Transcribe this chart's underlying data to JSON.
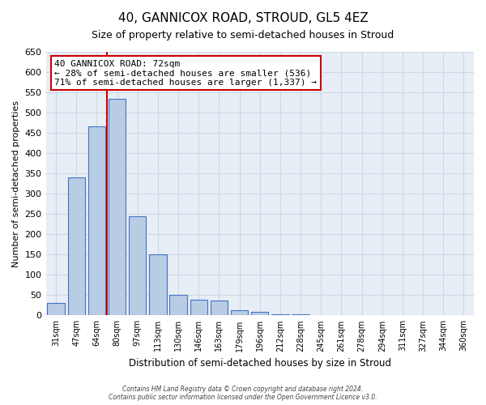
{
  "title": "40, GANNICOX ROAD, STROUD, GL5 4EZ",
  "subtitle": "Size of property relative to semi-detached houses in Stroud",
  "xlabel": "Distribution of semi-detached houses by size in Stroud",
  "ylabel": "Number of semi-detached properties",
  "bar_labels": [
    "31sqm",
    "47sqm",
    "64sqm",
    "80sqm",
    "97sqm",
    "113sqm",
    "130sqm",
    "146sqm",
    "163sqm",
    "179sqm",
    "196sqm",
    "212sqm",
    "228sqm",
    "245sqm",
    "261sqm",
    "278sqm",
    "294sqm",
    "311sqm",
    "327sqm",
    "344sqm",
    "360sqm"
  ],
  "bar_values": [
    30,
    340,
    467,
    535,
    245,
    150,
    50,
    39,
    37,
    12,
    8,
    3,
    2,
    1,
    1,
    0,
    0,
    1,
    0,
    0,
    1
  ],
  "bar_color": "#b8cce4",
  "bar_edge_color": "#4472c4",
  "property_line_x": 2.5,
  "annotation_title": "40 GANNICOX ROAD: 72sqm",
  "annotation_line1": "← 28% of semi-detached houses are smaller (536)",
  "annotation_line2": "71% of semi-detached houses are larger (1,337) →",
  "annotation_box_color": "#ffffff",
  "annotation_box_edge": "#cc0000",
  "property_line_color": "#cc0000",
  "ylim": [
    0,
    650
  ],
  "yticks": [
    0,
    50,
    100,
    150,
    200,
    250,
    300,
    350,
    400,
    450,
    500,
    550,
    600,
    650
  ],
  "footer_line1": "Contains HM Land Registry data © Crown copyright and database right 2024.",
  "footer_line2": "Contains public sector information licensed under the Open Government Licence v3.0.",
  "bg_color": "#ffffff",
  "grid_color": "#ccd9e8"
}
